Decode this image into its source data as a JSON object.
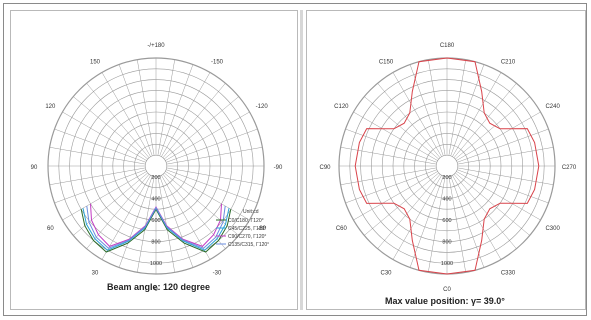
{
  "chart_data": [
    {
      "type": "polar",
      "title": "Beam angle: 120 degree",
      "angle_labels": [
        {
          "deg": 0,
          "label": "0"
        },
        {
          "deg": 30,
          "label": "-30"
        },
        {
          "deg": 60,
          "label": "-60"
        },
        {
          "deg": 90,
          "label": "-90"
        },
        {
          "deg": 120,
          "label": "-120"
        },
        {
          "deg": 150,
          "label": "-150"
        },
        {
          "deg": 180,
          "label": "-/+180"
        },
        {
          "deg": 210,
          "label": "150"
        },
        {
          "deg": 240,
          "label": "120"
        },
        {
          "deg": 270,
          "label": "90"
        },
        {
          "deg": 300,
          "label": "60"
        },
        {
          "deg": 330,
          "label": "30"
        }
      ],
      "radial_labels": [
        "200",
        "400",
        "600",
        "800",
        "1000"
      ],
      "rmax": 1000,
      "unit_label": "Unit:cd",
      "legend": [
        {
          "label": "C0/C180, Γ120°",
          "color": "#2a6b2a"
        },
        {
          "label": "C45/C225, Γ120°",
          "color": "#29a3d6"
        },
        {
          "label": "C90/C270, Γ120°",
          "color": "#c23bc2"
        },
        {
          "label": "C135/C315, Γ120°",
          "color": "#6a8de0"
        }
      ],
      "series": [
        {
          "name": "C0/C180",
          "color": "#2a6b2a",
          "points": [
            [
              -60,
              800
            ],
            [
              -50,
              860
            ],
            [
              -40,
              900
            ],
            [
              -30,
              920
            ],
            [
              -20,
              760
            ],
            [
              -10,
              600
            ],
            [
              0,
              400
            ],
            [
              10,
              600
            ],
            [
              20,
              760
            ],
            [
              30,
              920
            ],
            [
              40,
              900
            ],
            [
              50,
              860
            ],
            [
              60,
              800
            ]
          ]
        },
        {
          "name": "C45/C225",
          "color": "#29a3d6",
          "points": [
            [
              -60,
              780
            ],
            [
              -50,
              840
            ],
            [
              -40,
              880
            ],
            [
              -30,
              900
            ],
            [
              -20,
              740
            ],
            [
              -10,
              580
            ],
            [
              0,
              390
            ],
            [
              10,
              580
            ],
            [
              20,
              740
            ],
            [
              30,
              900
            ],
            [
              40,
              880
            ],
            [
              50,
              840
            ],
            [
              60,
              780
            ]
          ]
        },
        {
          "name": "C90/C270",
          "color": "#c23bc2",
          "points": [
            [
              -60,
              700
            ],
            [
              -50,
              780
            ],
            [
              -40,
              830
            ],
            [
              -30,
              860
            ],
            [
              -20,
              720
            ],
            [
              -10,
              560
            ],
            [
              0,
              380
            ],
            [
              10,
              560
            ],
            [
              20,
              720
            ],
            [
              30,
              860
            ],
            [
              40,
              830
            ],
            [
              50,
              780
            ],
            [
              60,
              700
            ]
          ]
        },
        {
          "name": "C135/C315",
          "color": "#6a8de0",
          "points": [
            [
              -60,
              740
            ],
            [
              -50,
              810
            ],
            [
              -40,
              860
            ],
            [
              -30,
              880
            ],
            [
              -20,
              730
            ],
            [
              -10,
              570
            ],
            [
              0,
              385
            ],
            [
              10,
              570
            ],
            [
              20,
              730
            ],
            [
              30,
              880
            ],
            [
              40,
              860
            ],
            [
              50,
              810
            ],
            [
              60,
              740
            ]
          ]
        }
      ]
    },
    {
      "type": "polar",
      "title": "Max value position:",
      "title_value": "γ= 39.0°",
      "angle_labels": [
        {
          "deg": 0,
          "label": "C0"
        },
        {
          "deg": 30,
          "label": "C330"
        },
        {
          "deg": 60,
          "label": "C300"
        },
        {
          "deg": 90,
          "label": "C270"
        },
        {
          "deg": 120,
          "label": "C240"
        },
        {
          "deg": 150,
          "label": "C210"
        },
        {
          "deg": 180,
          "label": "C180"
        },
        {
          "deg": 210,
          "label": "C150"
        },
        {
          "deg": 240,
          "label": "C120"
        },
        {
          "deg": 270,
          "label": "C90"
        },
        {
          "deg": 300,
          "label": "C60"
        },
        {
          "deg": 330,
          "label": "C30"
        }
      ],
      "radial_labels": [
        "200",
        "400",
        "600",
        "800",
        "1000"
      ],
      "rmax": 1000,
      "series": [
        {
          "name": "max",
          "color": "#d9434a",
          "points": [
            [
              0,
              1000
            ],
            [
              15,
              1000
            ],
            [
              25,
              760
            ],
            [
              35,
              600
            ],
            [
              45,
              560
            ],
            [
              55,
              600
            ],
            [
              65,
              820
            ],
            [
              75,
              840
            ],
            [
              90,
              850
            ],
            [
              105,
              840
            ],
            [
              115,
              820
            ],
            [
              125,
              600
            ],
            [
              135,
              560
            ],
            [
              145,
              600
            ],
            [
              155,
              760
            ],
            [
              165,
              1000
            ],
            [
              180,
              1000
            ],
            [
              195,
              1000
            ],
            [
              205,
              760
            ],
            [
              215,
              600
            ],
            [
              225,
              560
            ],
            [
              235,
              600
            ],
            [
              245,
              820
            ],
            [
              255,
              840
            ],
            [
              270,
              850
            ],
            [
              285,
              840
            ],
            [
              295,
              820
            ],
            [
              305,
              600
            ],
            [
              315,
              560
            ],
            [
              325,
              600
            ],
            [
              335,
              760
            ],
            [
              345,
              1000
            ],
            [
              360,
              1000
            ]
          ]
        }
      ]
    }
  ]
}
